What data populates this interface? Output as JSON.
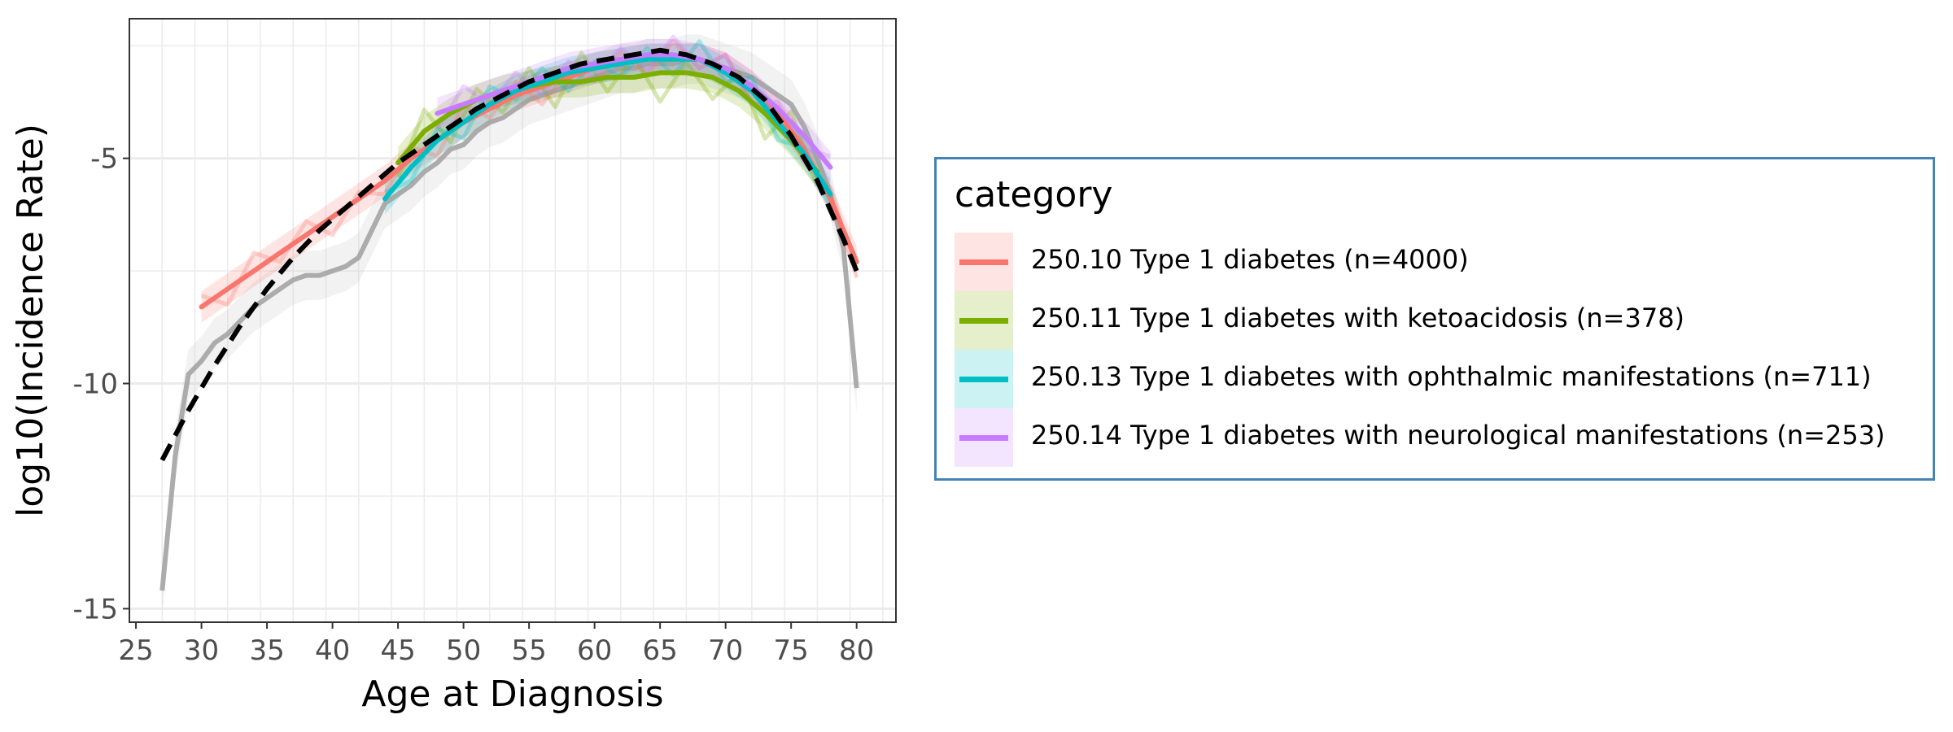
{
  "chart_data": {
    "type": "line",
    "xlabel": "Age at Diagnosis",
    "ylabel": "log10(Incidence Rate)",
    "xlim": [
      24.5,
      83.0
    ],
    "ylim": [
      -15.3,
      -1.9
    ],
    "xticks": [
      25,
      30,
      35,
      40,
      45,
      50,
      55,
      60,
      65,
      70,
      75,
      80
    ],
    "yticks": [
      -5,
      -10,
      -15
    ],
    "ytick_labels": [
      "-5",
      "-10",
      "-15"
    ],
    "grid": true,
    "legend_title": "category",
    "legend_position": "right",
    "overall_raw": {
      "color": "#a0a0a0",
      "x": [
        27,
        28,
        29,
        30,
        31,
        32,
        33,
        34,
        35,
        36,
        37,
        38,
        39,
        40,
        41,
        42,
        43,
        44,
        45,
        46,
        47,
        48,
        49,
        50,
        51,
        52,
        53,
        54,
        55,
        56,
        57,
        58,
        59,
        60,
        61,
        62,
        63,
        64,
        65,
        66,
        67,
        68,
        69,
        70,
        71,
        72,
        73,
        74,
        75,
        76,
        77,
        78,
        79,
        80
      ],
      "y": [
        -14.6,
        -11.6,
        -9.8,
        -9.5,
        -9.1,
        -8.9,
        -8.6,
        -8.3,
        -8.1,
        -7.9,
        -7.7,
        -7.6,
        -7.6,
        -7.5,
        -7.4,
        -7.2,
        -6.6,
        -6.0,
        -5.8,
        -5.6,
        -5.3,
        -5.1,
        -4.8,
        -4.7,
        -4.4,
        -4.2,
        -4.1,
        -3.9,
        -3.7,
        -3.6,
        -3.5,
        -3.4,
        -3.3,
        -3.2,
        -3.1,
        -3.0,
        -3.0,
        -2.9,
        -2.9,
        -2.9,
        -2.8,
        -2.8,
        -2.9,
        -3.0,
        -3.1,
        -3.2,
        -3.4,
        -3.6,
        -3.8,
        -4.3,
        -5.0,
        -5.8,
        -7.0,
        -10.1
      ]
    },
    "overall_fit": {
      "color": "#000000",
      "x": [
        27,
        29,
        31,
        33,
        35,
        37,
        39,
        41,
        43,
        45,
        47,
        49,
        51,
        53,
        55,
        57,
        59,
        61,
        63,
        65,
        67,
        69,
        71,
        73,
        75,
        77,
        79,
        80
      ],
      "y": [
        -11.7,
        -10.6,
        -9.6,
        -8.7,
        -7.9,
        -7.2,
        -6.6,
        -6.1,
        -5.6,
        -5.1,
        -4.7,
        -4.3,
        -3.9,
        -3.6,
        -3.3,
        -3.1,
        -2.9,
        -2.8,
        -2.7,
        -2.6,
        -2.7,
        -2.9,
        -3.2,
        -3.7,
        -4.5,
        -5.5,
        -6.8,
        -7.5
      ]
    },
    "series": [
      {
        "name": "250.10 Type 1 diabetes (n=4000)",
        "color": "#f8766d",
        "x": [
          30,
          32,
          34,
          36,
          38,
          40,
          42,
          44,
          46,
          48,
          50,
          52,
          54,
          56,
          58,
          60,
          62,
          64,
          66,
          68,
          70,
          72,
          74,
          76,
          78,
          80
        ],
        "y": [
          -8.3,
          -7.9,
          -7.5,
          -7.1,
          -6.7,
          -6.3,
          -5.9,
          -5.5,
          -5.0,
          -4.6,
          -4.2,
          -3.9,
          -3.6,
          -3.4,
          -3.2,
          -3.0,
          -2.9,
          -2.8,
          -2.8,
          -2.8,
          -3.0,
          -3.4,
          -4.0,
          -4.8,
          -5.9,
          -7.3
        ]
      },
      {
        "name": "250.11 Type 1 diabetes with ketoacidosis (n=378)",
        "color": "#7cae00",
        "x": [
          45,
          47,
          49,
          51,
          53,
          55,
          57,
          59,
          61,
          63,
          65,
          67,
          69,
          71,
          73,
          75,
          77
        ],
        "y": [
          -5.1,
          -4.4,
          -4.0,
          -3.7,
          -3.5,
          -3.4,
          -3.3,
          -3.3,
          -3.2,
          -3.2,
          -3.1,
          -3.1,
          -3.2,
          -3.5,
          -4.0,
          -4.6,
          -5.3
        ]
      },
      {
        "name": "250.13 Type 1 diabetes with ophthalmic manifestations (n=711)",
        "color": "#00bfc4",
        "x": [
          44,
          46,
          48,
          50,
          52,
          54,
          56,
          58,
          60,
          62,
          64,
          66,
          68,
          70,
          72,
          74,
          76,
          78
        ],
        "y": [
          -5.9,
          -5.2,
          -4.6,
          -4.2,
          -3.8,
          -3.5,
          -3.3,
          -3.1,
          -3.0,
          -2.9,
          -2.8,
          -2.8,
          -2.8,
          -3.1,
          -3.5,
          -4.2,
          -4.9,
          -5.8
        ]
      },
      {
        "name": "250.14 Type 1 diabetes with neurological manifestations (n=253)",
        "color": "#c77cff",
        "x": [
          48,
          50,
          52,
          54,
          56,
          58,
          60,
          62,
          64,
          66,
          68,
          70,
          72,
          74,
          76,
          78
        ],
        "y": [
          -4.0,
          -3.8,
          -3.6,
          -3.4,
          -3.2,
          -3.0,
          -2.9,
          -2.8,
          -2.7,
          -2.7,
          -2.8,
          -3.0,
          -3.4,
          -3.9,
          -4.5,
          -5.2
        ]
      }
    ]
  }
}
